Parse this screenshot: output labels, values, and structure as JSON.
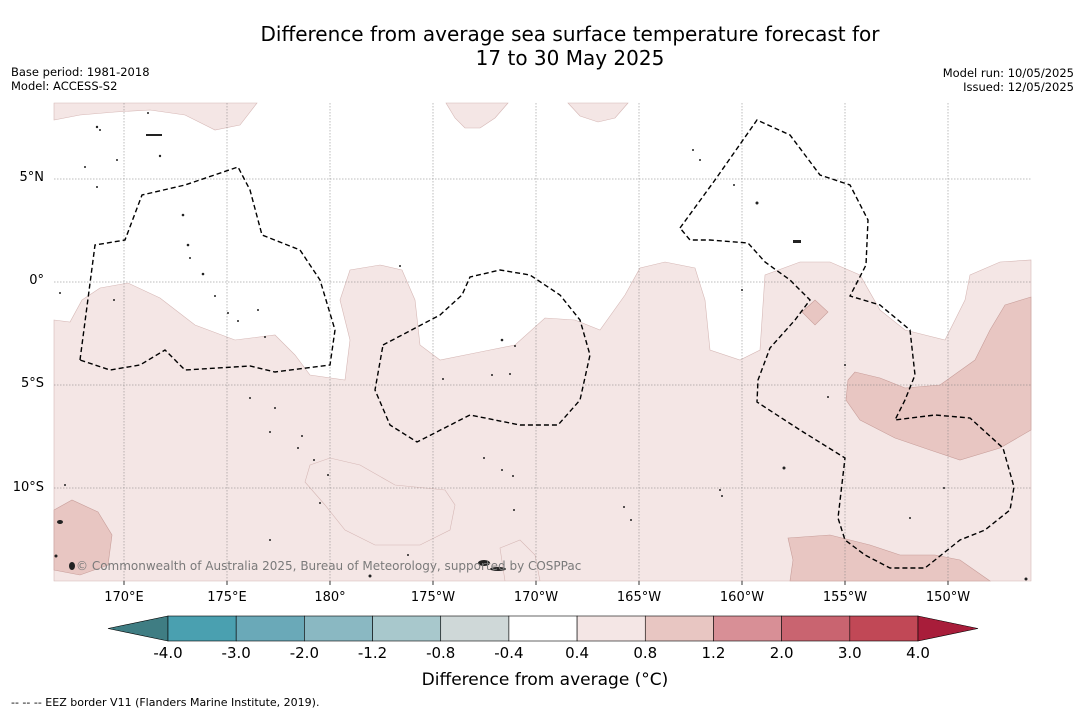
{
  "title_line1": "Difference from average sea surface temperature forecast for",
  "title_line2": "17 to 30 May 2025",
  "base_period": "Base period: 1981-2018",
  "model": "Model: ACCESS-S2",
  "model_run": "Model run: 10/05/2025",
  "issued": "Issued: 12/05/2025",
  "copyright": "© Commonwealth of Australia 2025, Bureau of Meteorology, supported by COSPPac",
  "lon_labels": [
    "170°E",
    "175°E",
    "180°",
    "175°W",
    "170°W",
    "165°W",
    "160°W",
    "155°W",
    "150°W"
  ],
  "lat_labels": [
    "5°N",
    "0°",
    "5°S",
    "10°S"
  ],
  "colorbar": {
    "title": "Difference from average (°C)",
    "ticks": [
      "-4.0",
      "-3.0",
      "-2.0",
      "-1.2",
      "-0.8",
      "-0.4",
      "0.4",
      "0.8",
      "1.2",
      "2.0",
      "3.0",
      "4.0"
    ],
    "colors": [
      "#3f7d83",
      "#4aa0b0",
      "#6aa9b8",
      "#8ab8c2",
      "#a8c8cc",
      "#cfd8d8",
      "#ffffff",
      "#f4e6e5",
      "#e8c6c2",
      "#d88f96",
      "#c96470",
      "#c14856",
      "#a81d3a"
    ]
  },
  "legend_note": "--  --  -- EEZ border V11 (Flanders Marine Institute, 2019)."
}
